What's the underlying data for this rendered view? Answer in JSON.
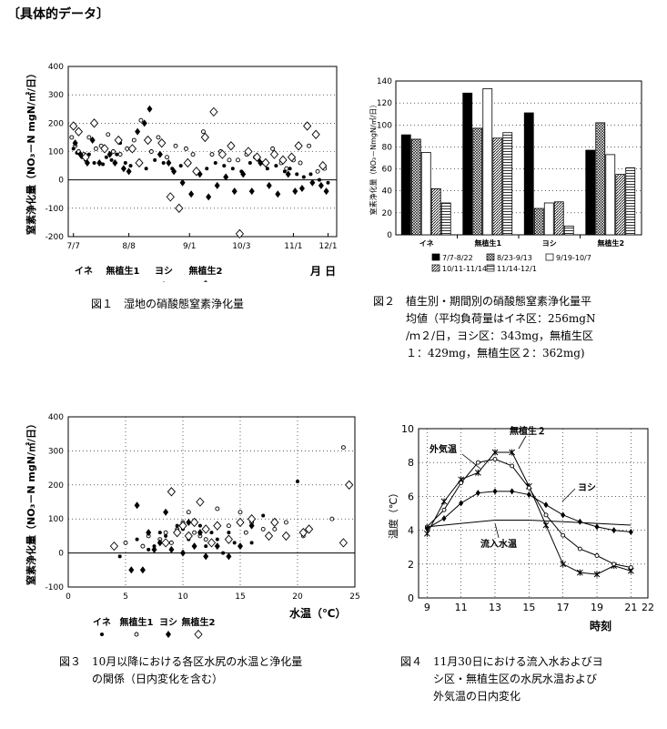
{
  "header": "〔具体的データ〕",
  "captions": {
    "fig1": {
      "num": "図１",
      "text": "湿地の硝酸態窒素浄化量"
    },
    "fig2": {
      "num": "図２",
      "line1": "植生別・期間別の硝酸態窒素浄化量平",
      "line2": "均値（平均負荷量はイネ区：256mgN",
      "line3": "/ｍ２/日，ヨシ区：343mg，無植生区",
      "line4": "１：429mg，無植生区２：362mg)"
    },
    "fig3": {
      "num": "図３",
      "line1": "10月以降における各区水尻の水温と浄化量",
      "line2": "の関係（日内変化を含む）"
    },
    "fig4": {
      "num": "図４",
      "line1": "11月30日における流入水およびヨ",
      "line2": "シ区・無植生区の水尻水温および",
      "line3": "外気温の日内変化"
    }
  },
  "chart_data": [
    {
      "id": "fig1",
      "type": "scatter",
      "ylabel": "窒素浄化量（NO₃－N mgN/㎡/日）",
      "ylim": [
        -200,
        400
      ],
      "yticks": [
        400,
        300,
        200,
        100,
        0,
        -100,
        -200
      ],
      "xticks": [
        "7/7",
        "8/8",
        "9/1",
        "10/3",
        "11/1",
        "12/1"
      ],
      "xunit": "月 日",
      "legend": [
        "イネ",
        "無植生1",
        "ヨシ",
        "無植生2"
      ],
      "series": [
        {
          "name": "イネ",
          "x": [
            3,
            5,
            8,
            10,
            12,
            15,
            20,
            22,
            25,
            28,
            30,
            33,
            36,
            45,
            50,
            55,
            60,
            65,
            70,
            75,
            80,
            85,
            90,
            95,
            100,
            105,
            110,
            115,
            120,
            125,
            128,
            132,
            136,
            140,
            145,
            150
          ],
          "y": [
            110,
            95,
            80,
            70,
            90,
            60,
            55,
            80,
            70,
            90,
            130,
            60,
            50,
            40,
            70,
            60,
            40,
            50,
            60,
            30,
            40,
            60,
            50,
            40,
            30,
            60,
            70,
            40,
            50,
            30,
            40,
            20,
            10,
            20,
            0,
            -10
          ]
        },
        {
          "name": "無植生1",
          "x": [
            2,
            4,
            6,
            9,
            12,
            16,
            19,
            23,
            26,
            30,
            34,
            38,
            42,
            48,
            52,
            57,
            62,
            68,
            72,
            78,
            83,
            88,
            93,
            98,
            103,
            108,
            113,
            118,
            123,
            126,
            130,
            134,
            139,
            144,
            148
          ],
          "y": [
            150,
            120,
            100,
            90,
            150,
            110,
            120,
            160,
            100,
            90,
            110,
            140,
            210,
            100,
            150,
            80,
            120,
            110,
            90,
            170,
            90,
            100,
            70,
            70,
            90,
            80,
            60,
            110,
            60,
            40,
            70,
            60,
            120,
            30,
            40
          ]
        },
        {
          "name": "ヨシ",
          "x": [
            4,
            7,
            11,
            14,
            18,
            24,
            27,
            32,
            35,
            40,
            44,
            47,
            53,
            58,
            61,
            66,
            71,
            76,
            81,
            86,
            91,
            96,
            101,
            106,
            111,
            116,
            121,
            127,
            131,
            135,
            141,
            146,
            149
          ],
          "y": [
            130,
            90,
            60,
            140,
            60,
            90,
            60,
            40,
            30,
            170,
            200,
            250,
            90,
            60,
            30,
            -10,
            -50,
            20,
            -60,
            -20,
            10,
            -40,
            20,
            -40,
            60,
            -20,
            -50,
            20,
            -40,
            -30,
            -10,
            -20,
            -40
          ]
        },
        {
          "name": "無植生2",
          "x": [
            3,
            6,
            10,
            15,
            21,
            29,
            37,
            41,
            46,
            54,
            59,
            64,
            69,
            74,
            79,
            84,
            89,
            94,
            99,
            104,
            109,
            114,
            119,
            124,
            129,
            133,
            138,
            143,
            147
          ],
          "y": [
            190,
            170,
            80,
            200,
            110,
            140,
            110,
            60,
            140,
            130,
            -60,
            -100,
            60,
            30,
            150,
            240,
            90,
            120,
            -190,
            100,
            80,
            60,
            90,
            70,
            80,
            120,
            190,
            160,
            50
          ]
        }
      ]
    },
    {
      "id": "fig2",
      "type": "bar",
      "ylabel": "窒素浄化量（NO₃－NmgN/㎡/日）",
      "ylim": [
        0,
        140
      ],
      "yticks": [
        0,
        20,
        40,
        60,
        80,
        100,
        120,
        140
      ],
      "categories": [
        "イネ",
        "無植生1",
        "ヨシ",
        "無植生2"
      ],
      "legend": [
        "7/7-8/22",
        "8/23-9/13",
        "9/19-10/7",
        "10/11-11/14",
        "11/14-12/1"
      ],
      "series": [
        {
          "name": "7/7-8/22",
          "values": [
            91,
            129,
            111,
            77
          ]
        },
        {
          "name": "8/23-9/13",
          "values": [
            87,
            97,
            24,
            102
          ]
        },
        {
          "name": "9/19-10/7",
          "values": [
            75,
            133,
            29,
            73
          ]
        },
        {
          "name": "10/11-11/14",
          "values": [
            42,
            88,
            30,
            55
          ]
        },
        {
          "name": "11/14-12/1",
          "values": [
            29,
            93,
            8,
            61
          ]
        }
      ]
    },
    {
      "id": "fig3",
      "type": "scatter",
      "ylabel": "窒素浄化量（NO₃－N mgN/㎡/日）",
      "ylim": [
        -100,
        400
      ],
      "yticks": [
        400,
        300,
        200,
        100,
        0,
        -100
      ],
      "xlim": [
        0,
        25
      ],
      "xticks": [
        0,
        5,
        10,
        15,
        20,
        25
      ],
      "xlabel": "水温（℃）",
      "legend": [
        "イネ",
        "無植生1",
        "ヨシ",
        "無植生2"
      ],
      "series": [
        {
          "name": "イネ",
          "x": [
            4.5,
            6,
            7,
            7.5,
            8,
            8.5,
            9,
            9.5,
            10,
            10.5,
            11,
            11.5,
            12,
            12.5,
            13,
            13.5,
            14,
            14.5,
            15,
            15.5,
            16,
            17,
            20
          ],
          "y": [
            -10,
            40,
            10,
            20,
            60,
            50,
            30,
            80,
            70,
            40,
            20,
            80,
            20,
            60,
            40,
            0,
            60,
            30,
            90,
            60,
            30,
            110,
            210
          ]
        },
        {
          "name": "無植生1",
          "x": [
            5,
            6.5,
            7,
            8,
            8.5,
            9,
            9.5,
            10,
            10.5,
            11,
            11.5,
            12,
            13,
            14,
            15,
            15.5,
            16,
            17,
            18,
            19,
            20.5,
            21,
            23,
            24
          ],
          "y": [
            30,
            20,
            50,
            40,
            60,
            30,
            70,
            90,
            120,
            60,
            50,
            40,
            130,
            80,
            120,
            60,
            90,
            70,
            70,
            90,
            50,
            70,
            100,
            310
          ]
        },
        {
          "name": "ヨシ",
          "x": [
            5.5,
            6,
            6.5,
            7,
            7.5,
            8,
            8.5,
            9,
            9.5,
            10,
            10.5,
            11,
            11.5,
            12,
            12.5,
            13,
            14,
            15,
            16
          ],
          "y": [
            -50,
            140,
            -50,
            60,
            10,
            30,
            120,
            10,
            60,
            0,
            90,
            20,
            60,
            -10,
            30,
            20,
            -10,
            20,
            80
          ]
        },
        {
          "name": "無植生2",
          "x": [
            4,
            8.5,
            9,
            9.5,
            10,
            10.5,
            11,
            11.5,
            12,
            12.5,
            13,
            14,
            15,
            16,
            17.5,
            18,
            19,
            20.5,
            21,
            24,
            24.5
          ],
          "y": [
            20,
            30,
            180,
            60,
            80,
            50,
            90,
            150,
            70,
            30,
            80,
            40,
            90,
            100,
            50,
            90,
            50,
            60,
            70,
            30,
            200
          ]
        }
      ]
    },
    {
      "id": "fig4",
      "type": "line",
      "ylabel": "温度（℃）",
      "xlabel": "時刻",
      "ylim": [
        0,
        10
      ],
      "yticks": [
        0,
        2,
        4,
        6,
        8,
        10
      ],
      "xlim": [
        8.5,
        22
      ],
      "xticks": [
        9,
        11,
        13,
        15,
        17,
        19,
        21,
        22
      ],
      "series": [
        {
          "name": "外気温",
          "x": [
            9,
            10,
            11,
            12,
            13,
            14,
            15,
            16,
            17,
            18,
            19,
            20,
            21
          ],
          "y": [
            3.8,
            5.7,
            7.0,
            7.4,
            8.6,
            8.6,
            6.6,
            4.3,
            2.0,
            1.5,
            1.4,
            1.9,
            1.6
          ]
        },
        {
          "name": "無植生２",
          "x": [
            9,
            10,
            11,
            12,
            13,
            14,
            15,
            16,
            17,
            18,
            19,
            20,
            21
          ],
          "y": [
            4.2,
            5.2,
            6.8,
            8.0,
            8.2,
            7.8,
            6.5,
            4.9,
            3.7,
            2.9,
            2.5,
            2.0,
            1.8
          ]
        },
        {
          "name": "ヨシ",
          "x": [
            9,
            10,
            11,
            12,
            13,
            14,
            15,
            16,
            17,
            18,
            19,
            20,
            21
          ],
          "y": [
            4.1,
            4.7,
            5.6,
            6.2,
            6.3,
            6.3,
            6.1,
            5.5,
            4.9,
            4.5,
            4.2,
            4.0,
            3.9
          ]
        },
        {
          "name": "流入水温",
          "x": [
            9,
            11,
            13,
            15,
            17,
            19,
            21
          ],
          "y": [
            4.2,
            4.4,
            4.6,
            4.6,
            4.5,
            4.4,
            4.3
          ]
        }
      ]
    }
  ]
}
